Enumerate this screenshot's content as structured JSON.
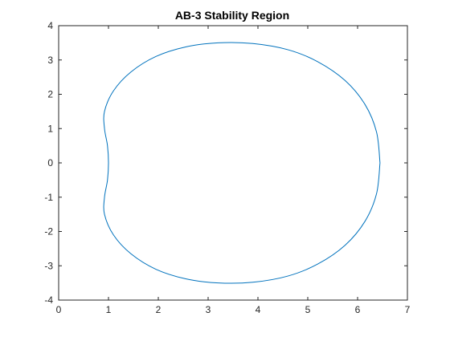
{
  "chart_data": {
    "type": "line",
    "title": "AB-3 Stability Region",
    "xlabel": "",
    "ylabel": "",
    "xlim": [
      0,
      7
    ],
    "ylim": [
      -4,
      4
    ],
    "x_ticks": [
      "0",
      "1",
      "2",
      "3",
      "4",
      "5",
      "6",
      "7"
    ],
    "y_ticks": [
      "4",
      "3",
      "2",
      "1",
      "0",
      "-1",
      "-2",
      "-3",
      "-4"
    ],
    "grid": false,
    "legend": "none",
    "series": [
      {
        "color": "#0072BD",
        "points": [
          [
            6.45,
            0.0
          ],
          [
            6.38,
            0.9
          ],
          [
            6.15,
            1.7
          ],
          [
            5.75,
            2.4
          ],
          [
            5.2,
            2.95
          ],
          [
            4.6,
            3.3
          ],
          [
            3.9,
            3.48
          ],
          [
            3.2,
            3.5
          ],
          [
            2.55,
            3.38
          ],
          [
            1.95,
            3.1
          ],
          [
            1.45,
            2.65
          ],
          [
            1.1,
            2.1
          ],
          [
            0.92,
            1.5
          ],
          [
            0.92,
            1.0
          ],
          [
            0.98,
            0.5
          ],
          [
            1.0,
            0.0
          ],
          [
            0.98,
            -0.5
          ],
          [
            0.92,
            -1.0
          ],
          [
            0.92,
            -1.5
          ],
          [
            1.1,
            -2.1
          ],
          [
            1.45,
            -2.65
          ],
          [
            1.95,
            -3.1
          ],
          [
            2.55,
            -3.38
          ],
          [
            3.2,
            -3.5
          ],
          [
            3.9,
            -3.48
          ],
          [
            4.6,
            -3.3
          ],
          [
            5.2,
            -2.95
          ],
          [
            5.75,
            -2.4
          ],
          [
            6.15,
            -1.7
          ],
          [
            6.38,
            -0.9
          ],
          [
            6.45,
            0.0
          ]
        ]
      }
    ]
  }
}
